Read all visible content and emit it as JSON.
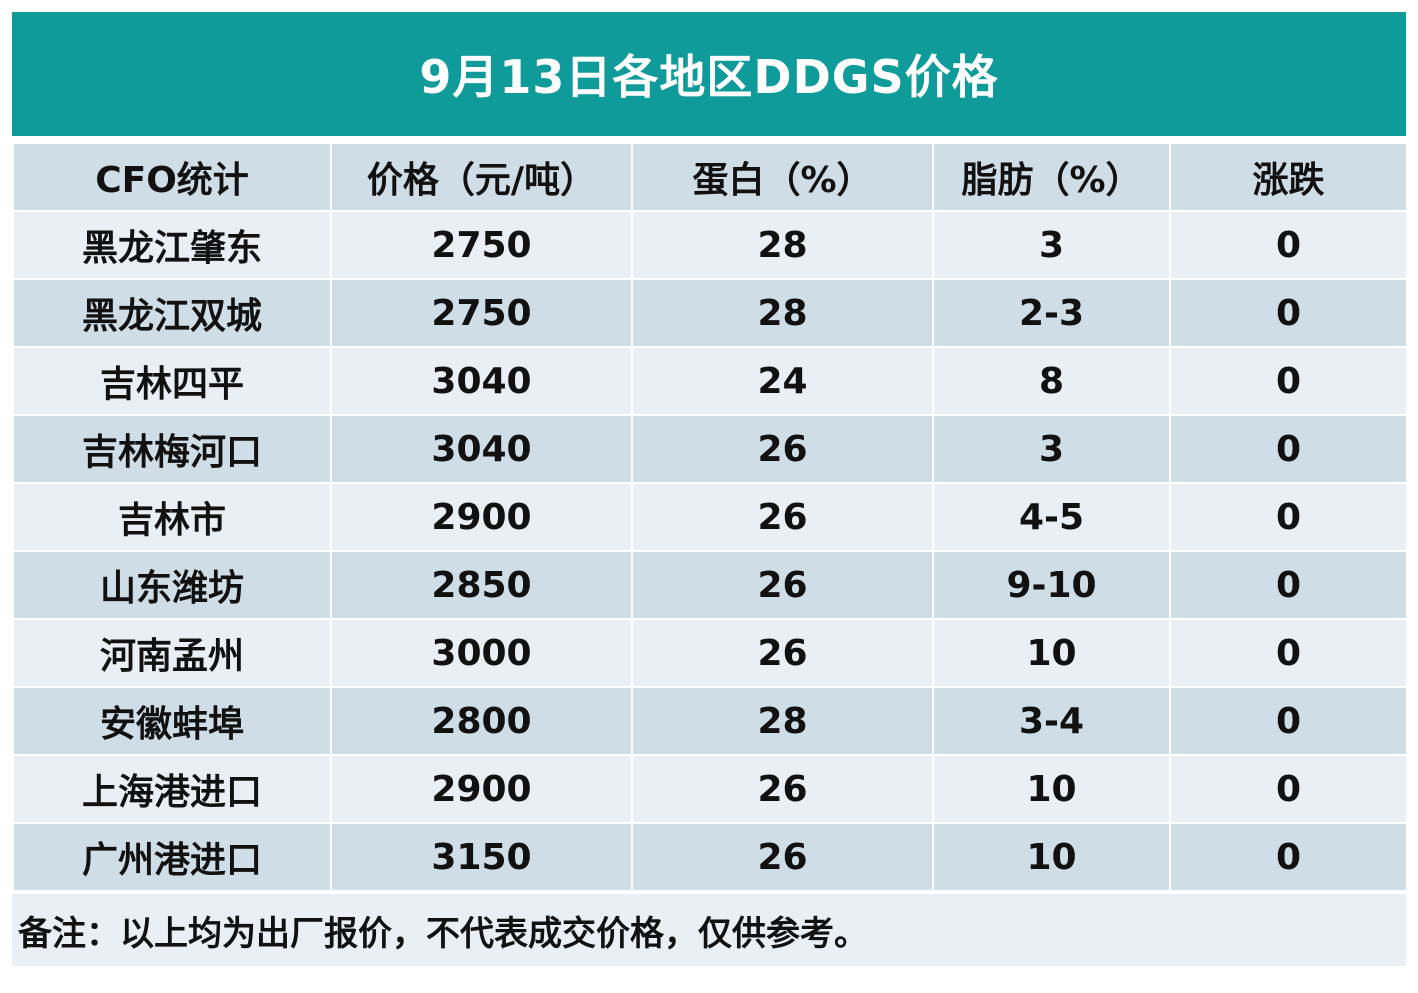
{
  "title": "9月13日各地区DDGS价格",
  "colors": {
    "title_bg": "#0f9b9a",
    "row_light": "#e9eff4",
    "row_dark": "#cfdde7"
  },
  "table": {
    "headers": [
      "CFO统计",
      "价格（元/吨）",
      "蛋白（%）",
      "脂肪（%）",
      "涨跌"
    ],
    "rows": [
      [
        "黑龙江肇东",
        "2750",
        "28",
        "3",
        "0"
      ],
      [
        "黑龙江双城",
        "2750",
        "28",
        "2-3",
        "0"
      ],
      [
        "吉林四平",
        "3040",
        "24",
        "8",
        "0"
      ],
      [
        "吉林梅河口",
        "3040",
        "26",
        "3",
        "0"
      ],
      [
        "吉林市",
        "2900",
        "26",
        "4-5",
        "0"
      ],
      [
        "山东潍坊",
        "2850",
        "26",
        "9-10",
        "0"
      ],
      [
        "河南孟州",
        "3000",
        "26",
        "10",
        "0"
      ],
      [
        "安徽蚌埠",
        "2800",
        "28",
        "3-4",
        "0"
      ],
      [
        "上海港进口",
        "2900",
        "26",
        "10",
        "0"
      ],
      [
        "广州港进口",
        "3150",
        "26",
        "10",
        "0"
      ]
    ]
  },
  "note": "备注：以上均为出厂报价，不代表成交价格，仅供参考。"
}
